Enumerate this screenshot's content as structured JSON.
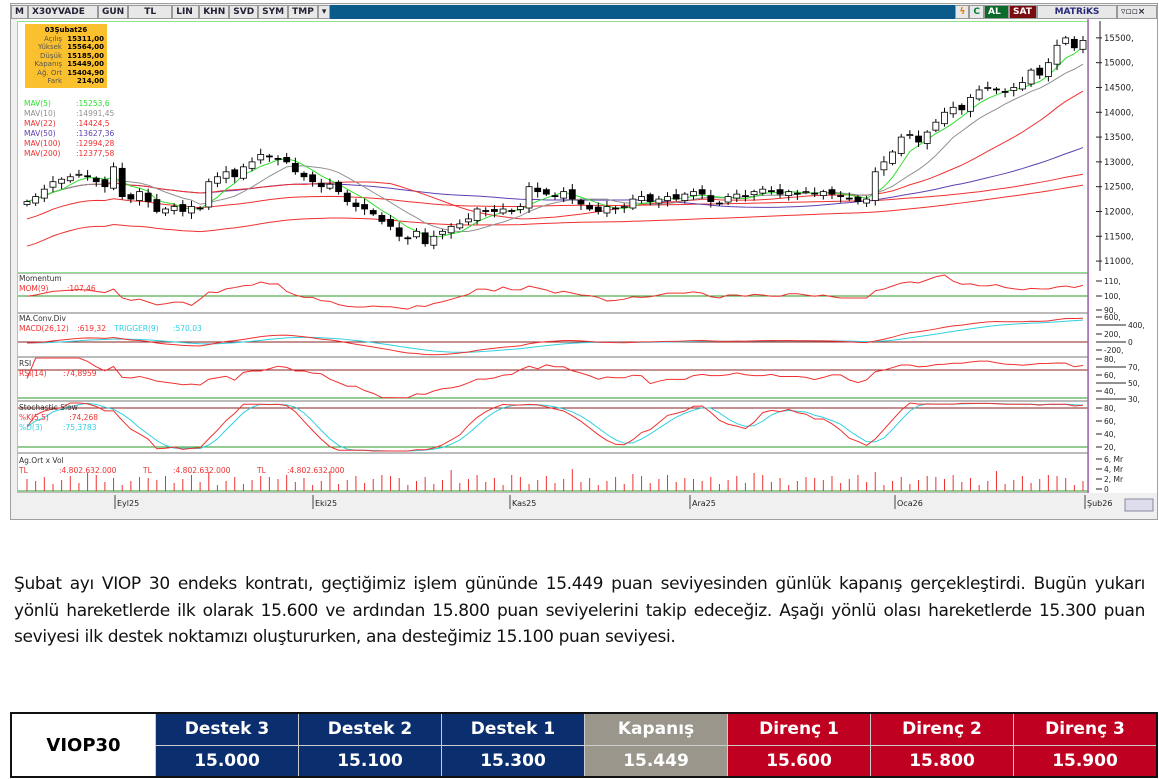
{
  "toolbar": {
    "logo": "M",
    "symbol": "X30YVADE",
    "period": "GUN",
    "currency": "TL",
    "scale": "LIN",
    "buttons": [
      "KHN",
      "SVD",
      "SYM",
      "TMP"
    ],
    "buy": "AL",
    "sell": "SAT",
    "brand": "MATRiKS"
  },
  "ohlc_box": {
    "date": "03Şubat26",
    "rows": [
      {
        "label": "Açılış",
        "value": "15311,00"
      },
      {
        "label": "Yüksek",
        "value": "15564,00"
      },
      {
        "label": "Düşük",
        "value": "15185,00"
      },
      {
        "label": "Kapanış",
        "value": "15449,00"
      },
      {
        "label": "Ağ. Ort",
        "value": "15404,90"
      },
      {
        "label": "Fark",
        "value": "214,00"
      }
    ]
  },
  "mav": [
    {
      "label": "MAV(5)",
      "value": ":15253,6",
      "color": "#30e030"
    },
    {
      "label": "MAV(10)",
      "value": ":14991,45",
      "color": "#909090"
    },
    {
      "label": "MAV(22)",
      "value": ":14424,5",
      "color": "#f03030"
    },
    {
      "label": "MAV(50)",
      "value": ":13627,36",
      "color": "#6040b0"
    },
    {
      "label": "MAV(100)",
      "value": ":12994,28",
      "color": "#f03030"
    },
    {
      "label": "MAV(200)",
      "value": ":12377,58",
      "color": "#f03030"
    }
  ],
  "panels": {
    "momentum": {
      "title": "Momentum",
      "label": "MOM(9)",
      "value": ":107,46",
      "ticks": [
        "110,",
        "100,",
        "90,"
      ]
    },
    "macd": {
      "title": "MA.Conv.Div",
      "label": "MACD(26,12)",
      "value": ":619,32",
      "trigger_label": "TRIGGER(9)",
      "trigger_value": ":570,03",
      "ticks": [
        "600,",
        "400,",
        "200,",
        "0",
        "-200,"
      ]
    },
    "rsi": {
      "title": "RSI",
      "label": "RSI(14)",
      "value": ":74,8959",
      "ticks": [
        "80,",
        "70,",
        "60,",
        "50,",
        "40,",
        "30,"
      ]
    },
    "stoch": {
      "title": "Stochastic Slow",
      "k_label": "%K(5,5)",
      "k_value": ":74,268",
      "d_label": "%D(3)",
      "d_value": ":75,3783",
      "ticks": [
        "80,",
        "60,",
        "40,",
        "20,"
      ]
    },
    "volume": {
      "title": "Ag.Ort x Vol",
      "labels": [
        {
          "u": "TL",
          "v": ":4.802.632.000"
        },
        {
          "u": "TL",
          "v": ":4.802.632.000"
        },
        {
          "u": "TL",
          "v": ":4.802.632.000"
        }
      ],
      "ticks": [
        "6, Mr",
        "4, Mr",
        "2, Mr",
        "0"
      ]
    }
  },
  "chart_data": {
    "type": "candlestick",
    "ylim": [
      10800,
      15800
    ],
    "yticks": [
      "15500,",
      "15000,",
      "14500,",
      "14000,",
      "13500,",
      "13000,",
      "12500,",
      "12000,",
      "11500,",
      "11000,"
    ],
    "xticks": [
      "Eyl25",
      "Eki25",
      "Kas25",
      "Ara25",
      "Oca26",
      "Şub26"
    ],
    "closes": [
      12200,
      12300,
      12450,
      12600,
      12650,
      12700,
      12750,
      12700,
      12600,
      12500,
      12900,
      12300,
      12250,
      12400,
      12200,
      12000,
      12050,
      12100,
      12000,
      12100,
      12050,
      12600,
      12700,
      12800,
      12700,
      12900,
      13000,
      13150,
      13100,
      13050,
      13000,
      12800,
      12700,
      12600,
      12500,
      12550,
      12400,
      12200,
      12100,
      12050,
      11950,
      11800,
      11700,
      11500,
      11450,
      11600,
      11350,
      11500,
      11600,
      11700,
      11750,
      11850,
      12050,
      12000,
      12000,
      12050,
      12000,
      12100,
      12500,
      12400,
      12350,
      12300,
      12400,
      12250,
      12150,
      12050,
      12000,
      12100,
      12050,
      12100,
      12250,
      12300,
      12200,
      12250,
      12300,
      12250,
      12350,
      12400,
      12350,
      12200,
      12150,
      12300,
      12350,
      12300,
      12400,
      12450,
      12400,
      12350,
      12400,
      12350,
      12400,
      12350,
      12400,
      12350,
      12300,
      12250,
      12200,
      12250,
      12800,
      13000,
      13200,
      13500,
      13550,
      13400,
      13600,
      13800,
      14000,
      14100,
      14050,
      14300,
      14450,
      14500,
      14450,
      14400,
      14500,
      14600,
      14850,
      14750,
      15000,
      15350,
      15500,
      15300,
      15449
    ]
  },
  "report": {
    "paragraph": "Şubat ayı VIOP 30 endeks kontratı, geçtiğimiz işlem gününde 15.449 puan seviyesinden günlük kapanış gerçekleştirdi. Bugün yukarı yönlü hareketlerde ilk olarak 15.600 ve ardından 15.800 puan seviyelerini takip edeceğiz. Aşağı yönlü olası hareketlerde 15.300 puan seviyesi ilk destek noktamızı oluştururken, ana desteğimiz 15.100 puan seviyesi."
  },
  "levels": {
    "name": "VIOP30",
    "columns": [
      {
        "label": "Destek 3",
        "value": "15.000",
        "color": "#0b2f6e"
      },
      {
        "label": "Destek 2",
        "value": "15.100",
        "color": "#0b2f6e"
      },
      {
        "label": "Destek 1",
        "value": "15.300",
        "color": "#0b2f6e"
      },
      {
        "label": "Kapanış",
        "value": "15.449",
        "color": "#9a968c"
      },
      {
        "label": "Direnç 1",
        "value": "15.600",
        "color": "#c00020"
      },
      {
        "label": "Direnç 2",
        "value": "15.800",
        "color": "#c00020"
      },
      {
        "label": "Direnç 3",
        "value": "15.900",
        "color": "#c00020"
      }
    ]
  }
}
